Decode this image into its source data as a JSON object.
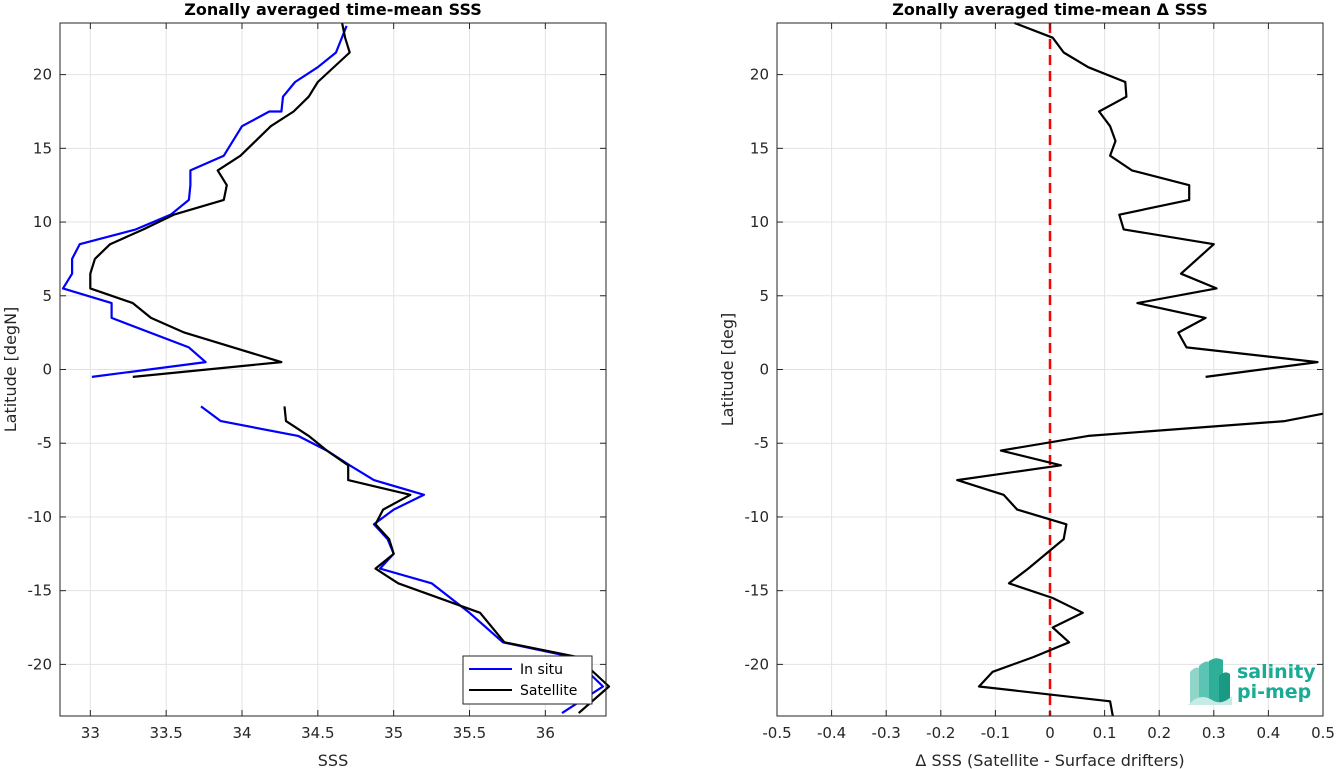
{
  "chart_data": [
    {
      "type": "line",
      "title": "Zonally averaged time-mean SSS",
      "xlabel": "SSS",
      "ylabel": "Latitude [degN]",
      "xlim": [
        32.8,
        36.4
      ],
      "ylim": [
        -23.5,
        23.5
      ],
      "xticks": [
        33,
        33.5,
        34,
        34.5,
        35,
        35.5,
        36
      ],
      "xtick_labels": [
        "33",
        "33.5",
        "34",
        "34.5",
        "35",
        "35.5",
        "36"
      ],
      "yticks": [
        -20,
        -15,
        -10,
        -5,
        0,
        5,
        10,
        15,
        20
      ],
      "ytick_labels": [
        "-20",
        "-15",
        "-10",
        "-5",
        "0",
        "5",
        "10",
        "15",
        "20"
      ],
      "grid": true,
      "legend": "bottom-right",
      "series": [
        {
          "name": "In situ",
          "color": "#0000ff",
          "segments": [
            [
              [
                34.69,
                23.3
              ],
              [
                34.62,
                21.5
              ],
              [
                34.5,
                20.5
              ],
              [
                34.35,
                19.5
              ],
              [
                34.27,
                18.5
              ],
              [
                34.26,
                17.5
              ],
              [
                34.18,
                17.5
              ],
              [
                34.0,
                16.5
              ],
              [
                33.88,
                14.5
              ],
              [
                33.66,
                13.5
              ],
              [
                33.66,
                12.5
              ],
              [
                33.65,
                11.5
              ],
              [
                33.53,
                10.5
              ],
              [
                33.3,
                9.5
              ],
              [
                32.93,
                8.5
              ],
              [
                32.88,
                7.5
              ],
              [
                32.88,
                6.5
              ],
              [
                32.82,
                5.5
              ],
              [
                33.14,
                4.5
              ],
              [
                33.14,
                3.5
              ],
              [
                33.65,
                1.5
              ],
              [
                33.76,
                0.5
              ],
              [
                33.01,
                -0.5
              ]
            ],
            [
              [
                33.73,
                -2.5
              ],
              [
                33.86,
                -3.5
              ],
              [
                34.37,
                -4.5
              ],
              [
                34.56,
                -5.5
              ],
              [
                34.71,
                -6.5
              ],
              [
                34.87,
                -7.5
              ],
              [
                35.2,
                -8.5
              ],
              [
                35.0,
                -9.5
              ],
              [
                34.87,
                -10.5
              ],
              [
                34.96,
                -11.5
              ],
              [
                35.0,
                -12.5
              ],
              [
                34.91,
                -13.5
              ],
              [
                35.25,
                -14.5
              ],
              [
                35.5,
                -16.5
              ],
              [
                35.72,
                -18.5
              ],
              [
                36.18,
                -19.5
              ],
              [
                36.38,
                -21.5
              ],
              [
                36.11,
                -23.3
              ]
            ]
          ]
        },
        {
          "name": "Satellite",
          "color": "#000000",
          "segments": [
            [
              [
                34.66,
                23.5
              ],
              [
                34.68,
                22.5
              ],
              [
                34.71,
                21.5
              ],
              [
                34.5,
                19.5
              ],
              [
                34.44,
                18.5
              ],
              [
                34.34,
                17.5
              ],
              [
                34.19,
                16.5
              ],
              [
                33.99,
                14.5
              ],
              [
                33.84,
                13.5
              ],
              [
                33.9,
                12.5
              ],
              [
                33.88,
                11.5
              ],
              [
                33.55,
                10.5
              ],
              [
                33.35,
                9.5
              ],
              [
                33.13,
                8.5
              ],
              [
                33.03,
                7.5
              ],
              [
                33.0,
                6.5
              ],
              [
                33.0,
                5.5
              ],
              [
                33.28,
                4.5
              ],
              [
                33.4,
                3.5
              ],
              [
                33.62,
                2.5
              ],
              [
                34.26,
                0.5
              ],
              [
                33.28,
                -0.5
              ]
            ],
            [
              [
                34.28,
                -2.5
              ],
              [
                34.29,
                -3.5
              ],
              [
                34.44,
                -4.5
              ],
              [
                34.56,
                -5.5
              ],
              [
                34.7,
                -6.5
              ],
              [
                34.7,
                -7.5
              ],
              [
                35.11,
                -8.5
              ],
              [
                34.93,
                -9.5
              ],
              [
                34.88,
                -10.5
              ],
              [
                34.97,
                -11.5
              ],
              [
                35.0,
                -12.5
              ],
              [
                34.88,
                -13.5
              ],
              [
                35.03,
                -14.5
              ],
              [
                35.57,
                -16.5
              ],
              [
                35.73,
                -18.5
              ],
              [
                36.21,
                -19.5
              ],
              [
                36.42,
                -21.5
              ],
              [
                36.22,
                -23.3
              ]
            ]
          ]
        }
      ]
    },
    {
      "type": "line",
      "title": "Zonally averaged time-mean Δ SSS",
      "xlabel": "Δ SSS (Satellite - Surface drifters)",
      "ylabel": "Latitude [deg]",
      "xlim": [
        -0.5,
        0.5
      ],
      "ylim": [
        -23.5,
        23.5
      ],
      "xticks": [
        -0.5,
        -0.4,
        -0.3,
        -0.2,
        -0.1,
        0,
        0.1,
        0.2,
        0.3,
        0.4,
        0.5
      ],
      "xtick_labels": [
        "-0.5",
        "-0.4",
        "-0.3",
        "-0.2",
        "-0.1",
        "0",
        "0.1",
        "0.2",
        "0.3",
        "0.4",
        "0.5"
      ],
      "yticks": [
        -20,
        -15,
        -10,
        -5,
        0,
        5,
        10,
        15,
        20
      ],
      "ytick_labels": [
        "-20",
        "-15",
        "-10",
        "-5",
        "0",
        "5",
        "10",
        "15",
        "20"
      ],
      "grid": true,
      "reference_line": {
        "x": 0,
        "color": "#ff0000",
        "style": "dashed"
      },
      "series": [
        {
          "color": "#000000",
          "segments": [
            [
              [
                -0.065,
                23.5
              ],
              [
                0.005,
                22.5
              ],
              [
                0.025,
                21.5
              ],
              [
                0.07,
                20.5
              ],
              [
                0.138,
                19.5
              ],
              [
                0.14,
                18.5
              ],
              [
                0.09,
                17.5
              ],
              [
                0.11,
                16.5
              ],
              [
                0.12,
                15.5
              ],
              [
                0.11,
                14.5
              ],
              [
                0.15,
                13.5
              ],
              [
                0.255,
                12.5
              ],
              [
                0.255,
                11.5
              ],
              [
                0.127,
                10.5
              ],
              [
                0.135,
                9.5
              ],
              [
                0.3,
                8.5
              ],
              [
                0.24,
                6.5
              ],
              [
                0.305,
                5.5
              ],
              [
                0.16,
                4.5
              ],
              [
                0.285,
                3.5
              ],
              [
                0.235,
                2.5
              ],
              [
                0.25,
                1.5
              ],
              [
                0.49,
                0.5
              ],
              [
                0.285,
                -0.5
              ]
            ],
            [
              [
                0.5,
                -3.0
              ],
              [
                0.43,
                -3.5
              ],
              [
                0.07,
                -4.5
              ],
              [
                -0.09,
                -5.5
              ],
              [
                0.02,
                -6.5
              ],
              [
                -0.17,
                -7.5
              ],
              [
                -0.085,
                -8.5
              ],
              [
                -0.06,
                -9.5
              ],
              [
                0.03,
                -10.5
              ],
              [
                0.025,
                -11.5
              ],
              [
                -0.04,
                -13.5
              ],
              [
                -0.075,
                -14.5
              ],
              [
                0.005,
                -15.5
              ],
              [
                0.06,
                -16.5
              ],
              [
                0.005,
                -17.5
              ],
              [
                0.035,
                -18.5
              ],
              [
                -0.03,
                -19.5
              ],
              [
                -0.105,
                -20.5
              ],
              [
                -0.13,
                -21.5
              ],
              [
                0.11,
                -22.5
              ],
              [
                0.115,
                -23.5
              ]
            ]
          ]
        }
      ]
    }
  ],
  "legend": {
    "in_situ_label": "In situ",
    "satellite_label": "Satellite"
  },
  "logo": {
    "line1": "salinity",
    "line2": "pi-mep",
    "color": "#1aab96"
  }
}
